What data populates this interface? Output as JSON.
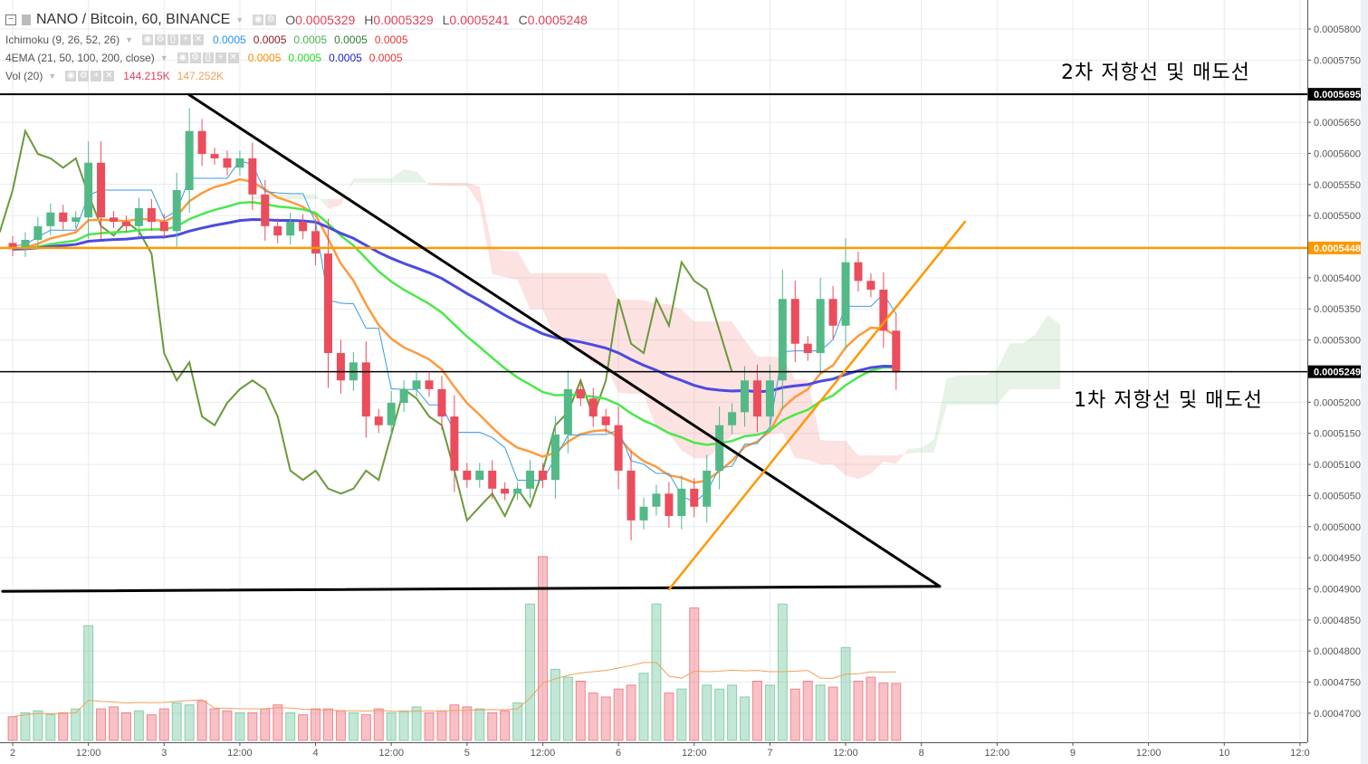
{
  "header": {
    "symbol": "NANO / Bitcoin, 60, BINANCE",
    "ohlc": [
      {
        "key": "O",
        "value": "0.0005329"
      },
      {
        "key": "H",
        "value": "0.0005329"
      },
      {
        "key": "L",
        "value": "0.0005241"
      },
      {
        "key": "C",
        "value": "0.0005248"
      }
    ],
    "ohlc_color": "#e0405a"
  },
  "indicators": [
    {
      "name": "Ichimoku (9, 26, 52, 26)",
      "values": [
        {
          "v": "0.0005",
          "color": "#2196f3"
        },
        {
          "v": "0.0005",
          "color": "#8b1a1a"
        },
        {
          "v": "0.0005",
          "color": "#4caf50"
        },
        {
          "v": "0.0005",
          "color": "#2e7d32"
        },
        {
          "v": "0.0005",
          "color": "#e53935"
        }
      ]
    },
    {
      "name": "4EMA (21, 50, 100, 200, close)",
      "values": [
        {
          "v": "0.0005",
          "color": "#ff8c00"
        },
        {
          "v": "0.0005",
          "color": "#22dd22"
        },
        {
          "v": "0.0005",
          "color": "#2222cc"
        },
        {
          "v": "0.0005",
          "color": "#e53935"
        }
      ]
    },
    {
      "name": "Vol (20)",
      "values": [
        {
          "v": "144.215K",
          "color": "#e0405a"
        },
        {
          "v": "147.252K",
          "color": "#f0a060"
        }
      ]
    }
  ],
  "annotations": {
    "resistance_2": "2차 저항선 및 매도선",
    "resistance_1": "1차 저항선 및 매도선"
  },
  "chart_data": {
    "type": "candlestick",
    "title": "NANO / Bitcoin, 60, BINANCE",
    "ylim": [
      0.00046599,
      0.000584
    ],
    "grid": true,
    "colors": {
      "up": "#53b987",
      "down": "#eb4d5c",
      "ema21": "#ff9a3c",
      "ema50": "#4be84b",
      "ema100": "#4b4be0",
      "tenkan": "#3a9ae0",
      "chikou": "#6a9a3a",
      "cloud_up": "rgba(60,160,60,0.13)",
      "cloud_down": "rgba(245,110,110,0.2)",
      "vol_ma": "#f0a060"
    },
    "times": [
      "2 00:00",
      "2 02:00",
      "2 04:00",
      "2 06:00",
      "2 08:00",
      "2 10:00",
      "2 12:00",
      "2 14:00",
      "2 16:00",
      "2 18:00",
      "2 20:00",
      "2 22:00",
      "3 00:00",
      "3 02:00",
      "3 04:00",
      "3 06:00",
      "3 08:00",
      "3 10:00",
      "3 12:00",
      "3 14:00",
      "3 16:00",
      "3 18:00",
      "3 20:00",
      "3 22:00",
      "4 00:00",
      "4 02:00",
      "4 04:00",
      "4 06:00",
      "4 08:00",
      "4 10:00",
      "4 12:00",
      "4 14:00",
      "4 16:00",
      "4 18:00",
      "4 20:00",
      "4 22:00",
      "5 00:00",
      "5 02:00",
      "5 04:00",
      "5 06:00",
      "5 08:00",
      "5 10:00",
      "5 12:00",
      "5 14:00",
      "5 16:00",
      "5 18:00",
      "5 20:00",
      "5 22:00",
      "6 00:00",
      "6 02:00",
      "6 04:00",
      "6 06:00",
      "6 08:00",
      "6 10:00",
      "6 12:00",
      "6 14:00",
      "6 16:00",
      "6 18:00",
      "6 20:00",
      "6 22:00",
      "7 00:00",
      "7 02:00",
      "7 04:00",
      "7 06:00",
      "7 08:00",
      "7 10:00",
      "7 12:00",
      "7 14:00",
      "7 16:00",
      "7 18:00",
      "7 20:00"
    ],
    "close": [
      0.0005446,
      0.0005461,
      0.0005483,
      0.0005505,
      0.000549,
      0.0005497,
      0.0005585,
      0.0005497,
      0.000549,
      0.0005483,
      0.0005512,
      0.000549,
      0.0005475,
      0.0005541,
      0.0005636,
      0.0005599,
      0.0005592,
      0.0005577,
      0.0005592,
      0.0005534,
      0.0005483,
      0.0005468,
      0.000549,
      0.0005475,
      0.0005439,
      0.0005279,
      0.0005235,
      0.0005264,
      0.0005177,
      0.0005163,
      0.0005199,
      0.0005221,
      0.0005235,
      0.0005221,
      0.0005177,
      0.000509,
      0.0005075,
      0.000509,
      0.0005061,
      0.0005053,
      0.0005061,
      0.000509,
      0.0005075,
      0.0005148,
      0.0005221,
      0.0005206,
      0.0005177,
      0.0005163,
      0.000509,
      0.000501,
      0.0005032,
      0.0005053,
      0.0005017,
      0.0005061,
      0.0005032,
      0.000509,
      0.0005163,
      0.0005184,
      0.0005235,
      0.0005177,
      0.0005235,
      0.0005366,
      0.0005294,
      0.0005279,
      0.0005366,
      0.0005323,
      0.0005425,
      0.0005395,
      0.0005381,
      0.0005315,
      0.0005248
    ],
    "volume_k": [
      60,
      70,
      75,
      65,
      70,
      80,
      290,
      80,
      85,
      70,
      75,
      65,
      80,
      95,
      90,
      100,
      80,
      75,
      70,
      70,
      80,
      90,
      70,
      65,
      80,
      80,
      75,
      70,
      65,
      80,
      70,
      75,
      85,
      70,
      75,
      90,
      85,
      80,
      70,
      75,
      95,
      345,
      465,
      180,
      160,
      150,
      120,
      110,
      130,
      140,
      170,
      345,
      120,
      130,
      335,
      140,
      130,
      140,
      110,
      150,
      140,
      345,
      130,
      150,
      140,
      135,
      235,
      150,
      160,
      145,
      144.215
    ],
    "indicator_params": {
      "ichimoku": [
        9,
        26,
        52,
        26
      ],
      "ema": [
        21,
        50,
        100
      ],
      "vol_ma": 20
    },
    "price_ticks": [
      "0.0005800",
      "0.0005750",
      "0.0005650",
      "0.0005600",
      "0.0005550",
      "0.0005500",
      "0.0005400",
      "0.0005350",
      "0.0005300",
      "0.0005200",
      "0.0005150",
      "0.0005100",
      "0.0005050",
      "0.0005000",
      "0.0004950",
      "0.0004900",
      "0.0004850",
      "0.0004800",
      "0.0004750",
      "0.0004700"
    ],
    "time_ticks": [
      {
        "label": "2",
        "time": "2 00:00"
      },
      {
        "label": "12:00",
        "time": "2 12:00"
      },
      {
        "label": "3",
        "time": "3 00:00"
      },
      {
        "label": "12:00",
        "time": "3 12:00"
      },
      {
        "label": "4",
        "time": "4 00:00"
      },
      {
        "label": "12:00",
        "time": "4 12:00"
      },
      {
        "label": "5",
        "time": "5 00:00"
      },
      {
        "label": "12:00",
        "time": "5 12:00"
      },
      {
        "label": "6",
        "time": "6 00:00"
      },
      {
        "label": "12:00",
        "time": "6 12:00"
      },
      {
        "label": "7",
        "time": "7 00:00"
      },
      {
        "label": "12:00",
        "time": "7 12:00"
      },
      {
        "label": "8",
        "time": "8 00:00"
      },
      {
        "label": "12:00",
        "time": "8 12:00"
      },
      {
        "label": "9",
        "time": "9 00:00"
      },
      {
        "label": "12:00",
        "time": "9 12:00"
      },
      {
        "label": "10",
        "time": "10 00:00"
      },
      {
        "label": "12:0",
        "time": "10 12:00"
      }
    ],
    "price_labels": [
      {
        "text": "0.0005695",
        "price": 0.0005695,
        "bg": "#000000"
      },
      {
        "text": "0.0005448",
        "price": 0.0005448,
        "bg": "#ff9800"
      },
      {
        "text": "0.0005249",
        "price": 0.0005249,
        "bg": "#000000"
      }
    ],
    "drawings": [
      {
        "name": "resistance-2-line",
        "color": "#000000",
        "width": 2,
        "full_width": true,
        "p1": {
          "time": "1 22:00",
          "price": 0.0005695
        },
        "p2": {
          "time": "10 20:00",
          "price": 0.0005695
        }
      },
      {
        "name": "resistance-orange-line",
        "color": "#ff9800",
        "width": 2.5,
        "full_width": true,
        "p1": {
          "time": "1 22:00",
          "price": 0.0005448
        },
        "p2": {
          "time": "10 20:00",
          "price": 0.0005448
        }
      },
      {
        "name": "resistance-1-line",
        "color": "#000000",
        "width": 1.5,
        "full_width": true,
        "p1": {
          "time": "1 22:00",
          "price": 0.0005249
        },
        "p2": {
          "time": "10 20:00",
          "price": 0.0005249
        }
      },
      {
        "name": "support-line",
        "color": "#000000",
        "width": 3,
        "p1": {
          "time": "1 22:24",
          "price": 0.0004896
        },
        "p2": {
          "time": "8 02:54",
          "price": 0.0004904
        }
      },
      {
        "name": "descending-trendline",
        "color": "#000000",
        "width": 3,
        "p1": {
          "time": "3 04:00",
          "price": 0.0005694
        },
        "p2": {
          "time": "8 02:54",
          "price": 0.0004904
        }
      },
      {
        "name": "ascending-trendline",
        "color": "#ff9800",
        "width": 2.5,
        "p1": {
          "time": "6 08:00",
          "price": 0.0004899
        },
        "p2": {
          "time": "8 06:54",
          "price": 0.000549
        }
      }
    ]
  }
}
